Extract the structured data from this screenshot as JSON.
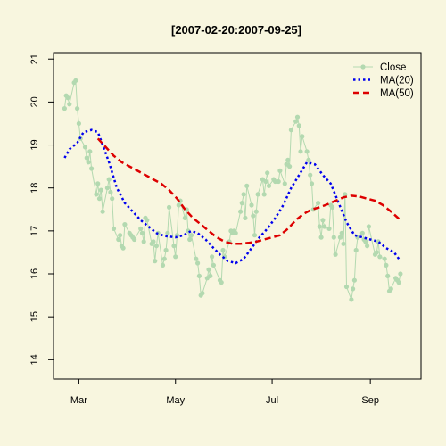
{
  "chart_data": {
    "type": "line",
    "title": "[2007-02-20:2007-09-25]",
    "xlabel": "",
    "ylabel": "",
    "x_range": [
      "2007-02-13",
      "2007-10-03"
    ],
    "ylim": [
      13.55,
      21.15
    ],
    "y_ticks": [
      14,
      15,
      16,
      17,
      18,
      19,
      20,
      21
    ],
    "x_ticks": [
      {
        "label": "Mar",
        "date": "2007-03-01"
      },
      {
        "label": "May",
        "date": "2007-05-01"
      },
      {
        "label": "Jul",
        "date": "2007-07-01"
      },
      {
        "label": "Sep",
        "date": "2007-09-01"
      }
    ],
    "grid": false,
    "legend": "top-right",
    "series": [
      {
        "name": "Close",
        "color": "#b3d9b0",
        "style": "line-points",
        "points": [
          [
            "2007-02-20",
            19.85
          ],
          [
            "2007-02-21",
            20.15
          ],
          [
            "2007-02-22",
            20.1
          ],
          [
            "2007-02-23",
            19.95
          ],
          [
            "2007-02-26",
            20.45
          ],
          [
            "2007-02-27",
            20.5
          ],
          [
            "2007-02-28",
            19.85
          ],
          [
            "2007-03-01",
            19.5
          ],
          [
            "2007-03-02",
            19.15
          ],
          [
            "2007-03-05",
            18.95
          ],
          [
            "2007-03-06",
            18.7
          ],
          [
            "2007-03-07",
            18.6
          ],
          [
            "2007-03-08",
            18.85
          ],
          [
            "2007-03-09",
            18.45
          ],
          [
            "2007-03-12",
            17.85
          ],
          [
            "2007-03-13",
            18.1
          ],
          [
            "2007-03-14",
            17.75
          ],
          [
            "2007-03-15",
            17.95
          ],
          [
            "2007-03-16",
            17.45
          ],
          [
            "2007-03-19",
            18.0
          ],
          [
            "2007-03-20",
            18.2
          ],
          [
            "2007-03-21",
            17.9
          ],
          [
            "2007-03-22",
            17.75
          ],
          [
            "2007-03-23",
            17.05
          ],
          [
            "2007-03-26",
            16.8
          ],
          [
            "2007-03-27",
            16.9
          ],
          [
            "2007-03-28",
            16.65
          ],
          [
            "2007-03-29",
            16.6
          ],
          [
            "2007-03-30",
            17.15
          ],
          [
            "2007-04-02",
            16.95
          ],
          [
            "2007-04-03",
            16.9
          ],
          [
            "2007-04-04",
            16.85
          ],
          [
            "2007-04-05",
            16.8
          ],
          [
            "2007-04-09",
            17.05
          ],
          [
            "2007-04-10",
            16.95
          ],
          [
            "2007-04-11",
            16.75
          ],
          [
            "2007-04-12",
            17.3
          ],
          [
            "2007-04-13",
            17.25
          ],
          [
            "2007-04-16",
            16.7
          ],
          [
            "2007-04-17",
            16.75
          ],
          [
            "2007-04-18",
            16.3
          ],
          [
            "2007-04-19",
            16.65
          ],
          [
            "2007-04-20",
            16.95
          ],
          [
            "2007-04-23",
            16.2
          ],
          [
            "2007-04-24",
            16.35
          ],
          [
            "2007-04-25",
            16.55
          ],
          [
            "2007-04-26",
            16.95
          ],
          [
            "2007-04-27",
            17.55
          ],
          [
            "2007-04-30",
            16.65
          ],
          [
            "2007-05-01",
            16.4
          ],
          [
            "2007-05-02",
            16.9
          ],
          [
            "2007-05-03",
            17.6
          ],
          [
            "2007-05-04",
            17.7
          ],
          [
            "2007-05-07",
            17.3
          ],
          [
            "2007-05-08",
            17.5
          ],
          [
            "2007-05-09",
            17.0
          ],
          [
            "2007-05-10",
            16.8
          ],
          [
            "2007-05-11",
            16.9
          ],
          [
            "2007-05-14",
            16.35
          ],
          [
            "2007-05-15",
            16.25
          ],
          [
            "2007-05-16",
            15.95
          ],
          [
            "2007-05-17",
            15.5
          ],
          [
            "2007-05-18",
            15.55
          ],
          [
            "2007-05-21",
            15.9
          ],
          [
            "2007-05-22",
            16.1
          ],
          [
            "2007-05-23",
            15.95
          ],
          [
            "2007-05-24",
            16.4
          ],
          [
            "2007-05-25",
            16.2
          ],
          [
            "2007-05-29",
            15.85
          ],
          [
            "2007-05-30",
            15.8
          ],
          [
            "2007-05-31",
            16.55
          ],
          [
            "2007-06-01",
            16.4
          ],
          [
            "2007-06-04",
            16.75
          ],
          [
            "2007-06-05",
            17.0
          ],
          [
            "2007-06-06",
            16.95
          ],
          [
            "2007-06-07",
            17.0
          ],
          [
            "2007-06-08",
            16.95
          ],
          [
            "2007-06-11",
            17.45
          ],
          [
            "2007-06-12",
            17.65
          ],
          [
            "2007-06-13",
            17.85
          ],
          [
            "2007-06-14",
            17.3
          ],
          [
            "2007-06-15",
            18.05
          ],
          [
            "2007-06-18",
            17.6
          ],
          [
            "2007-06-19",
            17.35
          ],
          [
            "2007-06-20",
            16.9
          ],
          [
            "2007-06-21",
            17.45
          ],
          [
            "2007-06-22",
            17.85
          ],
          [
            "2007-06-25",
            18.2
          ],
          [
            "2007-06-26",
            17.85
          ],
          [
            "2007-06-27",
            18.15
          ],
          [
            "2007-06-28",
            18.35
          ],
          [
            "2007-06-29",
            18.05
          ],
          [
            "2007-07-02",
            18.2
          ],
          [
            "2007-07-03",
            18.15
          ],
          [
            "2007-07-05",
            18.15
          ],
          [
            "2007-07-06",
            18.4
          ],
          [
            "2007-07-09",
            18.1
          ],
          [
            "2007-07-10",
            18.55
          ],
          [
            "2007-07-11",
            18.65
          ],
          [
            "2007-07-12",
            18.5
          ],
          [
            "2007-07-13",
            19.35
          ],
          [
            "2007-07-16",
            19.55
          ],
          [
            "2007-07-17",
            19.65
          ],
          [
            "2007-07-18",
            19.45
          ],
          [
            "2007-07-19",
            18.85
          ],
          [
            "2007-07-20",
            19.2
          ],
          [
            "2007-07-23",
            18.85
          ],
          [
            "2007-07-24",
            18.65
          ],
          [
            "2007-07-25",
            18.3
          ],
          [
            "2007-07-26",
            18.1
          ],
          [
            "2007-07-27",
            17.5
          ],
          [
            "2007-07-30",
            17.65
          ],
          [
            "2007-07-31",
            17.1
          ],
          [
            "2007-08-01",
            16.85
          ],
          [
            "2007-08-02",
            17.25
          ],
          [
            "2007-08-03",
            17.1
          ],
          [
            "2007-08-06",
            17.05
          ],
          [
            "2007-08-07",
            17.6
          ],
          [
            "2007-08-08",
            17.55
          ],
          [
            "2007-08-09",
            16.85
          ],
          [
            "2007-08-10",
            16.45
          ],
          [
            "2007-08-13",
            16.85
          ],
          [
            "2007-08-14",
            16.95
          ],
          [
            "2007-08-15",
            16.7
          ],
          [
            "2007-08-16",
            17.85
          ],
          [
            "2007-08-17",
            15.7
          ],
          [
            "2007-08-20",
            15.4
          ],
          [
            "2007-08-21",
            15.65
          ],
          [
            "2007-08-22",
            15.85
          ],
          [
            "2007-08-23",
            16.55
          ],
          [
            "2007-08-24",
            16.85
          ],
          [
            "2007-08-27",
            16.95
          ],
          [
            "2007-08-28",
            16.8
          ],
          [
            "2007-08-29",
            16.75
          ],
          [
            "2007-08-30",
            16.65
          ],
          [
            "2007-08-31",
            17.1
          ],
          [
            "2007-09-04",
            16.45
          ],
          [
            "2007-09-05",
            16.5
          ],
          [
            "2007-09-06",
            16.75
          ],
          [
            "2007-09-07",
            16.4
          ],
          [
            "2007-09-10",
            16.35
          ],
          [
            "2007-09-11",
            16.2
          ],
          [
            "2007-09-12",
            15.95
          ],
          [
            "2007-09-13",
            15.6
          ],
          [
            "2007-09-14",
            15.65
          ],
          [
            "2007-09-17",
            15.9
          ],
          [
            "2007-09-18",
            15.85
          ],
          [
            "2007-09-19",
            15.8
          ],
          [
            "2007-09-20",
            16.0
          ]
        ]
      },
      {
        "name": "MA(20)",
        "color": "#0000ee",
        "style": "dotted",
        "points": [
          [
            "2007-02-20",
            18.7
          ],
          [
            "2007-02-23",
            18.9
          ],
          [
            "2007-02-28",
            19.05
          ],
          [
            "2007-03-04",
            19.3
          ],
          [
            "2007-03-09",
            19.35
          ],
          [
            "2007-03-13",
            19.3
          ],
          [
            "2007-03-16",
            19.0
          ],
          [
            "2007-03-20",
            18.6
          ],
          [
            "2007-03-25",
            18.0
          ],
          [
            "2007-03-30",
            17.65
          ],
          [
            "2007-04-04",
            17.45
          ],
          [
            "2007-04-09",
            17.25
          ],
          [
            "2007-04-14",
            17.1
          ],
          [
            "2007-04-19",
            16.95
          ],
          [
            "2007-04-24",
            16.88
          ],
          [
            "2007-05-01",
            16.85
          ],
          [
            "2007-05-06",
            16.9
          ],
          [
            "2007-05-11",
            17.0
          ],
          [
            "2007-05-15",
            16.95
          ],
          [
            "2007-05-20",
            16.8
          ],
          [
            "2007-05-25",
            16.6
          ],
          [
            "2007-05-29",
            16.45
          ],
          [
            "2007-06-03",
            16.3
          ],
          [
            "2007-06-08",
            16.25
          ],
          [
            "2007-06-13",
            16.35
          ],
          [
            "2007-06-18",
            16.6
          ],
          [
            "2007-06-23",
            16.85
          ],
          [
            "2007-06-28",
            17.05
          ],
          [
            "2007-07-03",
            17.3
          ],
          [
            "2007-07-08",
            17.6
          ],
          [
            "2007-07-13",
            18.0
          ],
          [
            "2007-07-18",
            18.3
          ],
          [
            "2007-07-23",
            18.6
          ],
          [
            "2007-07-28",
            18.55
          ],
          [
            "2007-08-02",
            18.3
          ],
          [
            "2007-08-07",
            18.1
          ],
          [
            "2007-08-12",
            17.65
          ],
          [
            "2007-08-17",
            17.2
          ],
          [
            "2007-08-22",
            16.9
          ],
          [
            "2007-08-27",
            16.85
          ],
          [
            "2007-09-01",
            16.8
          ],
          [
            "2007-09-06",
            16.75
          ],
          [
            "2007-09-11",
            16.6
          ],
          [
            "2007-09-16",
            16.5
          ],
          [
            "2007-09-20",
            16.3
          ]
        ]
      },
      {
        "name": "MA(50)",
        "color": "#dd0000",
        "style": "dashed",
        "points": [
          [
            "2007-03-13",
            19.15
          ],
          [
            "2007-03-18",
            18.95
          ],
          [
            "2007-03-23",
            18.75
          ],
          [
            "2007-03-28",
            18.6
          ],
          [
            "2007-04-02",
            18.5
          ],
          [
            "2007-04-07",
            18.4
          ],
          [
            "2007-04-12",
            18.3
          ],
          [
            "2007-04-17",
            18.2
          ],
          [
            "2007-04-22",
            18.1
          ],
          [
            "2007-04-27",
            17.95
          ],
          [
            "2007-05-02",
            17.75
          ],
          [
            "2007-05-07",
            17.5
          ],
          [
            "2007-05-12",
            17.3
          ],
          [
            "2007-05-17",
            17.15
          ],
          [
            "2007-05-22",
            17.0
          ],
          [
            "2007-05-27",
            16.85
          ],
          [
            "2007-06-01",
            16.75
          ],
          [
            "2007-06-06",
            16.7
          ],
          [
            "2007-06-11",
            16.7
          ],
          [
            "2007-06-16",
            16.72
          ],
          [
            "2007-06-21",
            16.75
          ],
          [
            "2007-06-26",
            16.8
          ],
          [
            "2007-07-01",
            16.85
          ],
          [
            "2007-07-06",
            16.9
          ],
          [
            "2007-07-11",
            17.05
          ],
          [
            "2007-07-16",
            17.25
          ],
          [
            "2007-07-21",
            17.4
          ],
          [
            "2007-07-26",
            17.5
          ],
          [
            "2007-07-31",
            17.55
          ],
          [
            "2007-08-05",
            17.62
          ],
          [
            "2007-08-10",
            17.7
          ],
          [
            "2007-08-15",
            17.78
          ],
          [
            "2007-08-20",
            17.82
          ],
          [
            "2007-08-25",
            17.8
          ],
          [
            "2007-08-30",
            17.75
          ],
          [
            "2007-09-04",
            17.7
          ],
          [
            "2007-09-09",
            17.6
          ],
          [
            "2007-09-14",
            17.45
          ],
          [
            "2007-09-20",
            17.25
          ]
        ]
      }
    ]
  }
}
